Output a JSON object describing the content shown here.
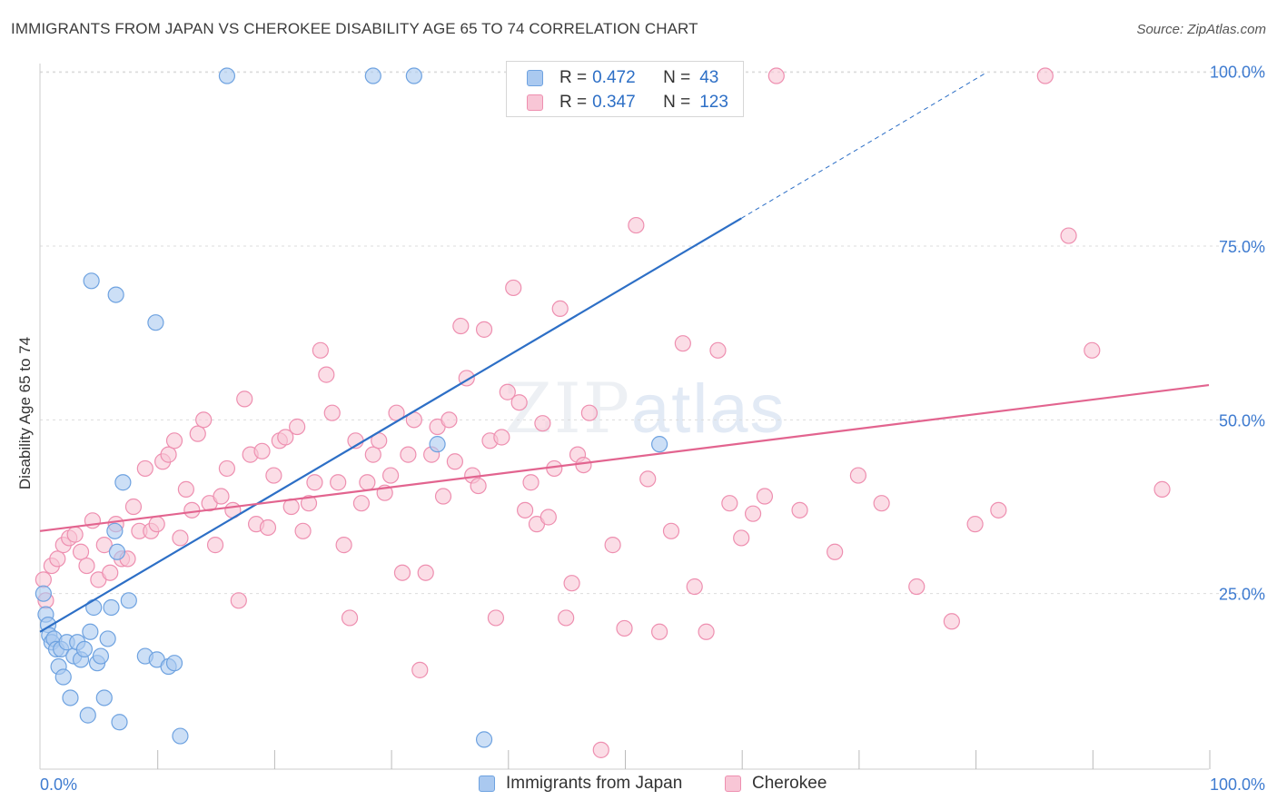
{
  "title": "IMMIGRANTS FROM JAPAN VS CHEROKEE DISABILITY AGE 65 TO 74 CORRELATION CHART",
  "source": "Source: ZipAtlas.com",
  "watermark": {
    "zip": "ZIP",
    "atlas": "atlas"
  },
  "legend_top": {
    "rows": [
      {
        "r_label": "R =",
        "r_value": "0.472",
        "n_label": "N =",
        "n_value": "43",
        "color": "#7fb0e8"
      },
      {
        "r_label": "R =",
        "r_value": "0.347",
        "n_label": "N =",
        "n_value": "123",
        "color": "#f29bb8"
      }
    ]
  },
  "legend_bottom": [
    {
      "label": "Immigrants from Japan",
      "color": "#7fb0e8"
    },
    {
      "label": "Cherokee",
      "color": "#f29bb8"
    }
  ],
  "colors": {
    "blue_fill": "#aac9f0",
    "blue_stroke": "#6ea2e0",
    "blue_line": "#2d6fc6",
    "pink_fill": "#f8c6d6",
    "pink_stroke": "#ee8fb0",
    "pink_line": "#e2648f",
    "grid": "#dcdcdc",
    "tick_label": "#3e7bd0"
  },
  "chart_data": {
    "type": "scatter",
    "title": "IMMIGRANTS FROM JAPAN VS CHEROKEE DISABILITY AGE 65 TO 74 CORRELATION CHART",
    "xlabel": "",
    "ylabel": "Disability Age 65 to 74",
    "xlim": [
      0,
      100
    ],
    "ylim": [
      0,
      102
    ],
    "x_tick_labels": [
      {
        "value": 0,
        "label": "0.0%"
      },
      {
        "value": 100,
        "label": "100.0%"
      }
    ],
    "y_tick_labels": [
      {
        "value": 25,
        "label": "25.0%"
      },
      {
        "value": 50,
        "label": "50.0%"
      },
      {
        "value": 75,
        "label": "75.0%"
      },
      {
        "value": 100,
        "label": "100.0%"
      }
    ],
    "x_minor_ticks": [
      10,
      20,
      30,
      40,
      50,
      60,
      70,
      80,
      90,
      100
    ],
    "series": [
      {
        "name": "Immigrants from Japan",
        "R": 0.472,
        "N": 43,
        "trend": {
          "x0": 0,
          "y0": 19.5,
          "x1": 60,
          "y1": 79,
          "dash_to_x": 81,
          "dash_to_y": 100
        },
        "points": [
          [
            0.3,
            25
          ],
          [
            0.5,
            22
          ],
          [
            0.7,
            20.5
          ],
          [
            0.8,
            19
          ],
          [
            1.0,
            18
          ],
          [
            1.2,
            18.5
          ],
          [
            1.4,
            17
          ],
          [
            1.6,
            14.5
          ],
          [
            1.8,
            17
          ],
          [
            2.0,
            13
          ],
          [
            2.3,
            18
          ],
          [
            2.6,
            10
          ],
          [
            2.9,
            16
          ],
          [
            3.2,
            18
          ],
          [
            3.5,
            15.5
          ],
          [
            3.8,
            17
          ],
          [
            4.1,
            7.5
          ],
          [
            4.3,
            19.5
          ],
          [
            4.6,
            23
          ],
          [
            4.9,
            15
          ],
          [
            5.2,
            16
          ],
          [
            5.5,
            10
          ],
          [
            5.8,
            18.5
          ],
          [
            6.1,
            23
          ],
          [
            6.4,
            34
          ],
          [
            6.6,
            31
          ],
          [
            6.8,
            6.5
          ],
          [
            7.1,
            41
          ],
          [
            7.6,
            24
          ],
          [
            9.0,
            16
          ],
          [
            10.0,
            15.5
          ],
          [
            11.0,
            14.5
          ],
          [
            12.0,
            4.5
          ],
          [
            16.0,
            99.5
          ],
          [
            4.4,
            70
          ],
          [
            6.5,
            68
          ],
          [
            9.9,
            64
          ],
          [
            11.5,
            15
          ],
          [
            28.5,
            99.5
          ],
          [
            32.0,
            99.5
          ],
          [
            34.0,
            46.5
          ],
          [
            38.0,
            4
          ],
          [
            53.0,
            46.5
          ]
        ]
      },
      {
        "name": "Cherokee",
        "R": 0.347,
        "N": 123,
        "trend": {
          "x0": 0,
          "y0": 34,
          "x1": 100,
          "y1": 55
        },
        "points": [
          [
            0.3,
            27
          ],
          [
            0.5,
            24
          ],
          [
            1.0,
            29
          ],
          [
            1.5,
            30
          ],
          [
            2.0,
            32
          ],
          [
            2.5,
            33
          ],
          [
            3.0,
            33.5
          ],
          [
            3.5,
            31
          ],
          [
            4.0,
            29
          ],
          [
            4.5,
            35.5
          ],
          [
            5.0,
            27
          ],
          [
            5.5,
            32
          ],
          [
            6.0,
            28
          ],
          [
            6.5,
            35
          ],
          [
            7.0,
            30
          ],
          [
            7.5,
            30
          ],
          [
            8.0,
            37.5
          ],
          [
            8.5,
            34
          ],
          [
            9.0,
            43
          ],
          [
            9.5,
            34
          ],
          [
            10.0,
            35
          ],
          [
            10.5,
            44
          ],
          [
            11.0,
            45
          ],
          [
            11.5,
            47
          ],
          [
            12.0,
            33
          ],
          [
            12.5,
            40
          ],
          [
            13.0,
            37
          ],
          [
            13.5,
            48
          ],
          [
            14.0,
            50
          ],
          [
            14.5,
            38
          ],
          [
            15.0,
            32
          ],
          [
            15.5,
            39
          ],
          [
            16.0,
            43
          ],
          [
            16.5,
            37
          ],
          [
            17.0,
            24
          ],
          [
            17.5,
            53
          ],
          [
            18.0,
            45
          ],
          [
            18.5,
            35
          ],
          [
            19.0,
            45.5
          ],
          [
            19.5,
            34.5
          ],
          [
            20.0,
            42
          ],
          [
            20.5,
            47
          ],
          [
            21.0,
            47.5
          ],
          [
            21.5,
            37.5
          ],
          [
            22.0,
            49
          ],
          [
            22.5,
            34
          ],
          [
            23.0,
            38
          ],
          [
            23.5,
            41
          ],
          [
            24.0,
            60
          ],
          [
            24.5,
            56.5
          ],
          [
            25.0,
            51
          ],
          [
            25.5,
            41
          ],
          [
            26.0,
            32
          ],
          [
            26.5,
            21.5
          ],
          [
            27.0,
            47
          ],
          [
            27.5,
            38
          ],
          [
            28.0,
            41
          ],
          [
            28.5,
            45
          ],
          [
            29.0,
            47
          ],
          [
            29.5,
            39.5
          ],
          [
            30.0,
            42
          ],
          [
            30.5,
            51
          ],
          [
            31.0,
            28
          ],
          [
            31.5,
            45
          ],
          [
            32.0,
            50
          ],
          [
            32.5,
            14
          ],
          [
            33.0,
            28
          ],
          [
            33.5,
            45
          ],
          [
            34.0,
            49
          ],
          [
            34.5,
            39
          ],
          [
            35.0,
            50
          ],
          [
            35.5,
            44
          ],
          [
            36.0,
            63.5
          ],
          [
            36.5,
            56
          ],
          [
            37.0,
            42
          ],
          [
            37.5,
            40.5
          ],
          [
            38.0,
            63
          ],
          [
            38.5,
            47
          ],
          [
            39.0,
            21.5
          ],
          [
            39.5,
            47.5
          ],
          [
            40.0,
            54
          ],
          [
            40.5,
            69
          ],
          [
            41.0,
            52.5
          ],
          [
            41.5,
            37
          ],
          [
            42.0,
            41
          ],
          [
            42.5,
            35
          ],
          [
            43.0,
            49.5
          ],
          [
            43.5,
            36
          ],
          [
            44.0,
            43
          ],
          [
            44.5,
            66
          ],
          [
            45.0,
            21.5
          ],
          [
            45.5,
            26.5
          ],
          [
            46.0,
            45
          ],
          [
            46.5,
            43.5
          ],
          [
            47.0,
            51
          ],
          [
            48.0,
            2.5
          ],
          [
            49.0,
            32
          ],
          [
            50.0,
            20
          ],
          [
            51.0,
            78
          ],
          [
            52.0,
            41.5
          ],
          [
            53.0,
            19.5
          ],
          [
            54.0,
            34
          ],
          [
            55.0,
            61
          ],
          [
            56.0,
            26
          ],
          [
            57.0,
            19.5
          ],
          [
            58.0,
            60
          ],
          [
            59.0,
            38
          ],
          [
            60.0,
            33
          ],
          [
            61.0,
            36.5
          ],
          [
            62.0,
            39
          ],
          [
            63.0,
            99.5
          ],
          [
            65.0,
            37
          ],
          [
            68.0,
            31
          ],
          [
            70.0,
            42
          ],
          [
            72.0,
            38
          ],
          [
            75.0,
            26
          ],
          [
            78.0,
            21
          ],
          [
            80.0,
            35
          ],
          [
            82.0,
            37
          ],
          [
            86.0,
            99.5
          ],
          [
            88.0,
            76.5
          ],
          [
            90.0,
            60
          ],
          [
            96.0,
            40
          ]
        ]
      }
    ]
  }
}
